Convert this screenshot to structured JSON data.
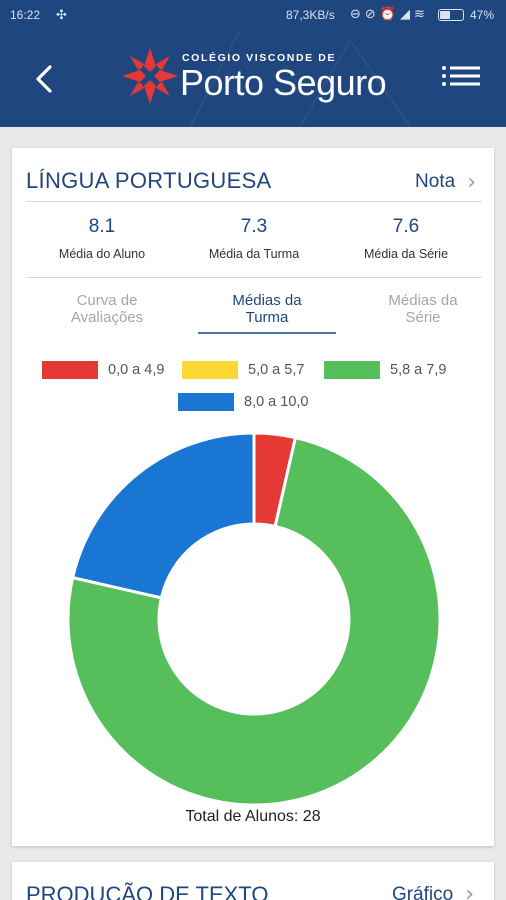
{
  "status_bar": {
    "time": "16:22",
    "network_speed": "87,3KB/s",
    "battery_percent": "47%",
    "battery_level": 0.47
  },
  "app_bar": {
    "logo_small": "COLÉGIO VISCONDE DE",
    "logo_big": "Porto Seguro",
    "colors": {
      "background": "#1f467e",
      "logo_red": "#e53935"
    }
  },
  "subject_card": {
    "title": "LÍNGUA PORTUGUESA",
    "link_label": "Nota",
    "stats": [
      {
        "value": "8.1",
        "label": "Média do Aluno"
      },
      {
        "value": "7.3",
        "label": "Média da Turma"
      },
      {
        "value": "7.6",
        "label": "Média da Série"
      }
    ],
    "tabs": [
      {
        "line1": "Curva de",
        "line2": "Avaliações",
        "active": false
      },
      {
        "line1": "Médias da",
        "line2": "Turma",
        "active": true
      },
      {
        "line1": "Médias da",
        "line2": "Série",
        "active": false
      }
    ],
    "total_label": "Total de Alunos: 28"
  },
  "chart_data": {
    "type": "pie",
    "donut": true,
    "legend": "top",
    "categories": [
      "0,0 a 4,9",
      "5,0 a 5,7",
      "5,8 a 7,9",
      "8,0 a 10,0"
    ],
    "values": [
      1,
      0,
      21,
      6
    ],
    "colors": [
      "#e53935",
      "#fdd835",
      "#56be5a",
      "#1976d2"
    ]
  },
  "next_card": {
    "title": "PRODUÇÃO DE TEXTO",
    "link_label": "Gráfico"
  }
}
